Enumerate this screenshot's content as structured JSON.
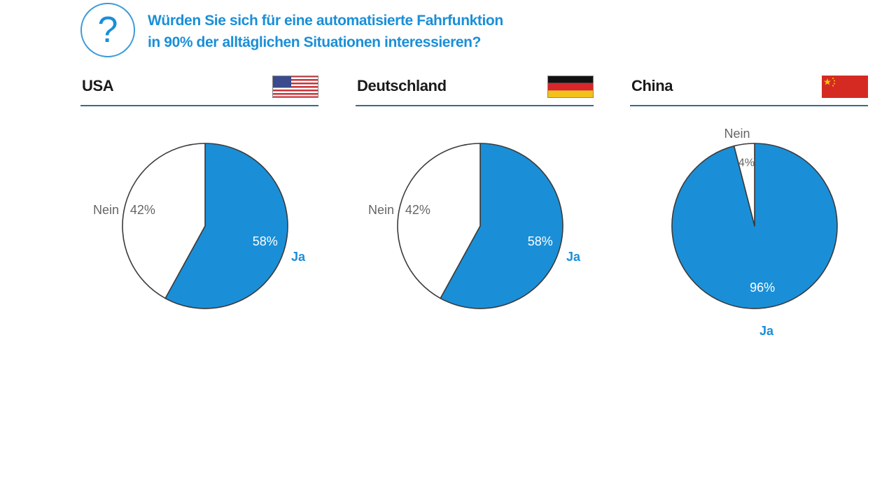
{
  "question": {
    "line1": "Würden Sie sich für eine automatisierte Fahrfunktion",
    "line2": "in 90% der alltäglichen Situationen interessieren?"
  },
  "colors": {
    "ja": "#1a8fd8",
    "nein": "#ffffff",
    "outline": "#3b3b3b",
    "accent": "#1a8fd8",
    "rule": "#3b6a8c"
  },
  "chart_data": [
    {
      "type": "pie",
      "title": "USA",
      "flag": "us-flag-icon",
      "slices": [
        {
          "label": "Ja",
          "value": 58,
          "display": "58%"
        },
        {
          "label": "Nein",
          "value": 42,
          "display": "42%"
        }
      ]
    },
    {
      "type": "pie",
      "title": "Deutschland",
      "flag": "germany-flag-icon",
      "slices": [
        {
          "label": "Ja",
          "value": 58,
          "display": "58%"
        },
        {
          "label": "Nein",
          "value": 42,
          "display": "42%"
        }
      ]
    },
    {
      "type": "pie",
      "title": "China",
      "flag": "china-flag-icon",
      "slices": [
        {
          "label": "Ja",
          "value": 96,
          "display": "96%"
        },
        {
          "label": "Nein",
          "value": 4,
          "display": "4%"
        }
      ]
    }
  ]
}
